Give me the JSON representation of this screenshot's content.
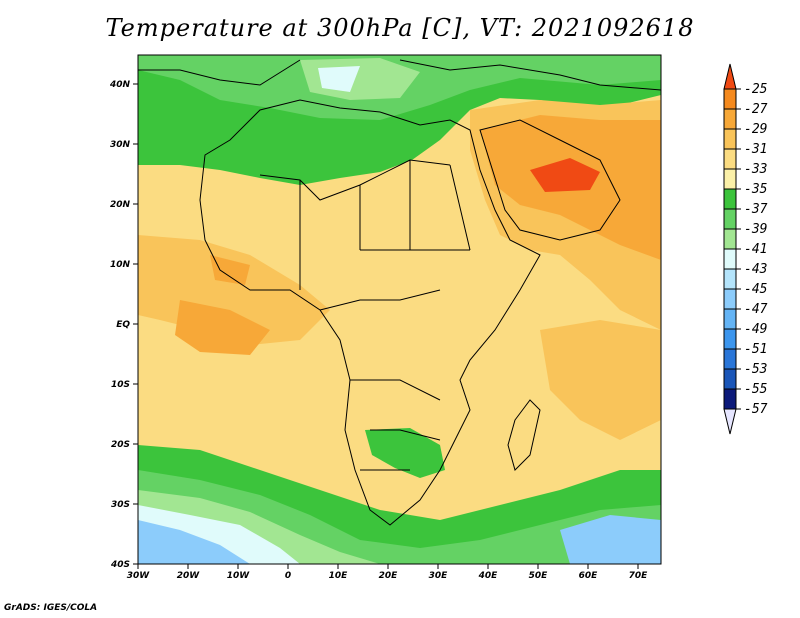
{
  "title": "Temperature at 300hPa [C], VT: 2021092618",
  "credit": "GrADS: IGES/COLA",
  "map": {
    "region": "Africa",
    "lat_labels": [
      "40N",
      "30N",
      "20N",
      "10N",
      "EQ",
      "10S",
      "20S",
      "30S",
      "40S"
    ],
    "lon_labels": [
      "30W",
      "20W",
      "10W",
      "0",
      "10E",
      "20E",
      "30E",
      "40E",
      "50E",
      "60E",
      "70E"
    ]
  },
  "colorbar": {
    "labels": [
      "-25",
      "-27",
      "-29",
      "-31",
      "-33",
      "-35",
      "-37",
      "-39",
      "-41",
      "-43",
      "-45",
      "-47",
      "-49",
      "-51",
      "-53",
      "-55",
      "-57"
    ],
    "colors": [
      "#f04a14",
      "#f58a1e",
      "#f7a838",
      "#f9c45a",
      "#fbdc82",
      "#fbf0a8",
      "#3cc43c",
      "#64d264",
      "#a2e692",
      "#e0fbfb",
      "#b4e4fb",
      "#8cccfb",
      "#64b4f5",
      "#3c96ee",
      "#2a76d8",
      "#1a56b8",
      "#0c1a7a",
      "#e6e6ff"
    ]
  }
}
